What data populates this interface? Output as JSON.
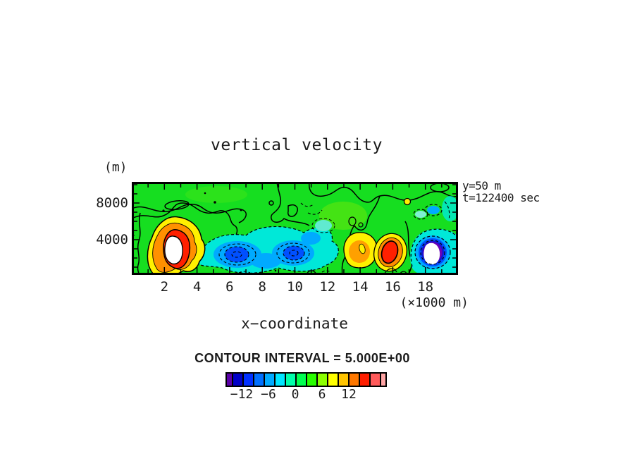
{
  "title": "vertical velocity",
  "annotations": {
    "y_unit": "(m)",
    "x_unit": "(×1000 m)",
    "x_label": "x−coordinate",
    "slice_label": "y=50 m",
    "time_label": "t=122400 sec",
    "contour_interval_label": "CONTOUR INTERVAL = 5.000E+00"
  },
  "axes": {
    "y_tick_labels": [
      "8000",
      "4000"
    ],
    "x_tick_labels": [
      "2",
      "4",
      "6",
      "8",
      "10",
      "12",
      "14",
      "16",
      "18"
    ]
  },
  "colorbar": {
    "cells": [
      "#5A00A8",
      "#0000C8",
      "#0030FF",
      "#0070FF",
      "#00AAFF",
      "#00E6FF",
      "#00FFAA",
      "#00FF50",
      "#28FF00",
      "#8CFF00",
      "#FFFF00",
      "#FFC400",
      "#FF7800",
      "#FF1E00",
      "#FF5A5A",
      "#FFA4A4"
    ],
    "labels": [
      "−12",
      "−6",
      "0",
      "6",
      "12"
    ]
  },
  "field_colors": {
    "background_green": "#16DE20",
    "positive_yellow": "#FFF000",
    "positive_orange": "#FF9000",
    "positive_red": "#FF2000",
    "saturated_core": "#FFFFFF",
    "negative_cyan": "#00E8D8",
    "negative_blue": "#00AAFF",
    "negative_deep_blue": "#0050FF",
    "negative_navy": "#1414D2",
    "negative_purple": "#6A00B8",
    "contour_line": "#000000"
  },
  "chart_data": {
    "type": "heatmap",
    "subtype": "filled-contour-plot",
    "title": "vertical velocity",
    "xlabel": "x−coordinate (×1000 m)",
    "ylabel": "(m)",
    "x_ticks": [
      2,
      4,
      6,
      8,
      10,
      12,
      14,
      16,
      18
    ],
    "y_ticks": [
      4000,
      8000
    ],
    "x_range_m": [
      0,
      20000
    ],
    "y_range_m": [
      0,
      10000
    ],
    "contour_interval": 5.0,
    "colorbar_tick_values": [
      -12,
      -6,
      0,
      6,
      12
    ],
    "slice": "y=50 m",
    "time_sec": 122400,
    "line_styles": {
      "positive_and_zero": "solid",
      "negative": "dashed"
    },
    "features": [
      {
        "sign": "positive",
        "x_km": 3.0,
        "z_m": 3000,
        "peak": "saturated above color range (white core), > 15"
      },
      {
        "sign": "negative",
        "x_km": 6.5,
        "z_m": 2600,
        "peak": "about -8"
      },
      {
        "sign": "negative",
        "x_km": 10.0,
        "z_m": 2800,
        "peak": "about -8"
      },
      {
        "sign": "positive",
        "x_km": 14.0,
        "z_m": 2600,
        "peak": "about 8"
      },
      {
        "sign": "positive",
        "x_km": 15.9,
        "z_m": 2600,
        "peak": "about 12"
      },
      {
        "sign": "negative",
        "x_km": 18.4,
        "z_m": 2500,
        "peak": "saturated below color range (white core), < -15"
      },
      {
        "sign": "positive",
        "x_km": 16.9,
        "z_m": 8000,
        "peak": "small closed contour, about 6"
      }
    ],
    "background_value": "near 0 (green)"
  }
}
